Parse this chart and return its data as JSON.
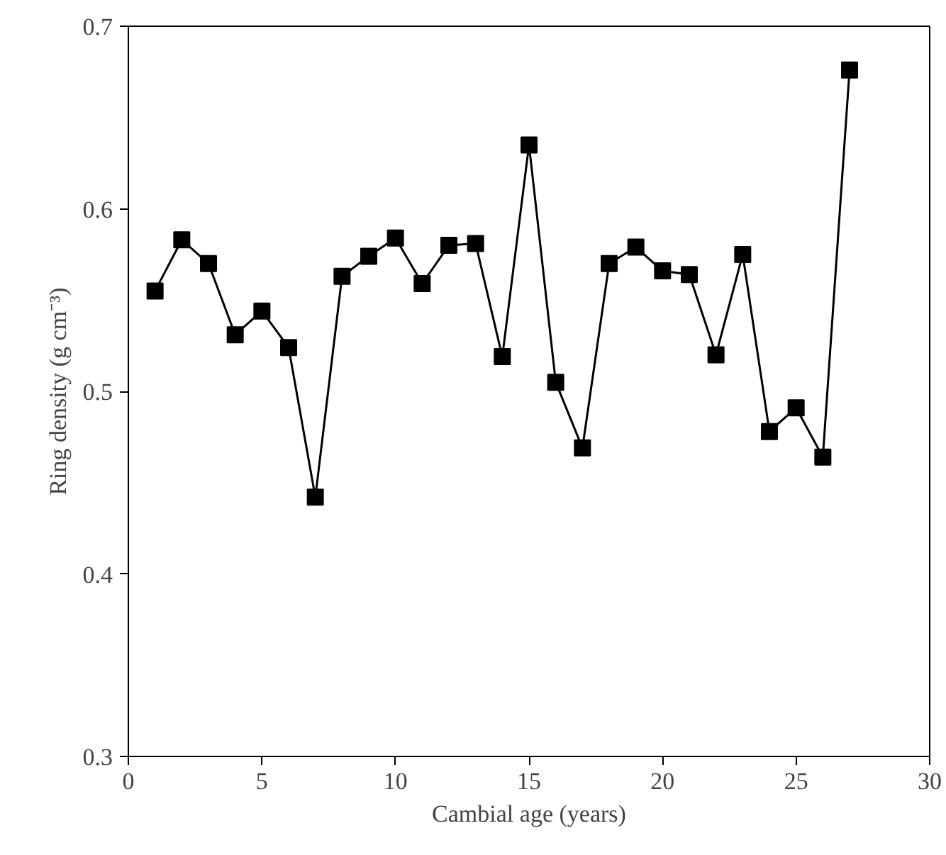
{
  "chart_data": {
    "type": "line",
    "xlabel": "Cambial age (years)",
    "ylabel": "Ring density (g cm⁻³)",
    "x": [
      1,
      2,
      3,
      4,
      5,
      6,
      7,
      8,
      9,
      10,
      11,
      12,
      13,
      14,
      15,
      16,
      17,
      18,
      19,
      20,
      21,
      22,
      23,
      24,
      25,
      26,
      27
    ],
    "series": [
      {
        "color": "#000000",
        "values": [
          0.555,
          0.583,
          0.57,
          0.531,
          0.544,
          0.524,
          0.442,
          0.563,
          0.574,
          0.584,
          0.559,
          0.58,
          0.581,
          0.519,
          0.635,
          0.505,
          0.469,
          0.57,
          0.579,
          0.566,
          0.564,
          0.52,
          0.575,
          0.478,
          0.491,
          0.464,
          0.676
        ]
      }
    ],
    "xlim": [
      0,
      30
    ],
    "ylim": [
      0.3,
      0.7
    ],
    "xticks": [
      0,
      5,
      10,
      15,
      20,
      25,
      30
    ],
    "yticks": [
      0.3,
      0.4,
      0.5,
      0.6,
      0.7
    ],
    "marker": "square",
    "line_style": "solid",
    "grid": false
  }
}
